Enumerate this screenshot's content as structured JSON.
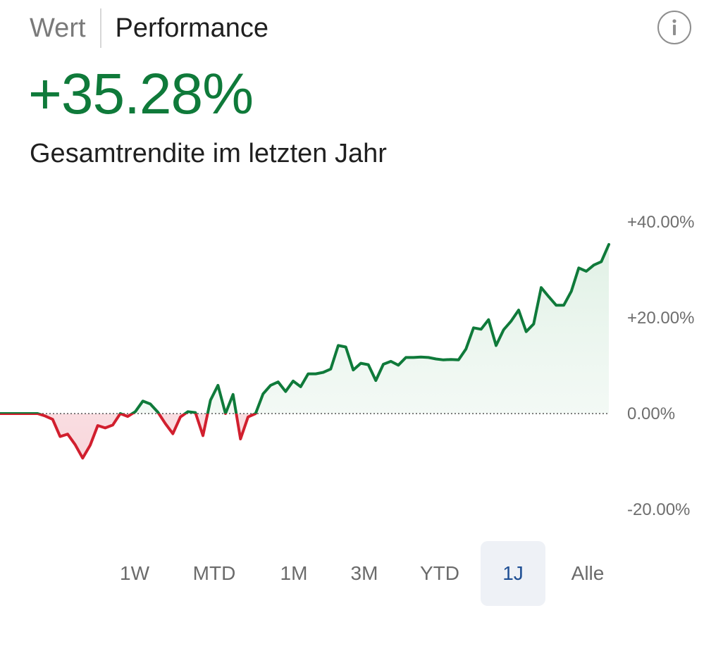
{
  "header": {
    "tabs": [
      {
        "label": "Wert",
        "active": false
      },
      {
        "label": "Performance",
        "active": true
      }
    ],
    "info_icon": "info-circle-icon"
  },
  "summary": {
    "value": "+35.28%",
    "caption": "Gesamtrendite im letzten Jahr",
    "value_color": "#0f7a3a"
  },
  "colors": {
    "positive": "#0f7a3a",
    "negative": "#d11f2e",
    "positive_fill": "#e6f4ea",
    "negative_fill": "#fbe3e6",
    "active_range_bg": "#eef1f6",
    "active_range_text": "#1f4f94"
  },
  "ranges": {
    "items": [
      "1W",
      "MTD",
      "1M",
      "3M",
      "YTD",
      "1J",
      "Alle"
    ],
    "selected": "1J"
  },
  "chart_data": {
    "type": "area",
    "ylim": [
      -20,
      40
    ],
    "y_ticks": [
      {
        "value": 40,
        "label": "+40.00%"
      },
      {
        "value": 20,
        "label": "+20.00%"
      },
      {
        "value": 0,
        "label": "0.00%"
      },
      {
        "value": -20,
        "label": "-20.00%"
      }
    ],
    "baseline": 0,
    "baseline_style": "dotted",
    "grid": false,
    "series": [
      {
        "values": [
          0,
          0,
          0,
          0,
          0,
          0,
          -0.5,
          -1.2,
          -4.8,
          -4.3,
          -6.5,
          -9.3,
          -6.6,
          -2.5,
          -3.0,
          -2.4,
          0,
          -0.6,
          0.4,
          2.6,
          2.0,
          0.3,
          -2.1,
          -4.2,
          -0.7,
          0.4,
          0.2,
          -4.6,
          2.8,
          5.9,
          0,
          4.0,
          -5.3,
          -0.7,
          0,
          4.1,
          5.9,
          6.6,
          4.6,
          6.8,
          5.6,
          8.3,
          8.3,
          8.6,
          9.3,
          14.2,
          13.9,
          9.1,
          10.5,
          10.2,
          6.9,
          10.3,
          10.9,
          10.1,
          11.7,
          11.7,
          11.8,
          11.7,
          11.4,
          11.2,
          11.3,
          11.2,
          13.5,
          17.9,
          17.6,
          19.6,
          14.2,
          17.5,
          19.3,
          21.6,
          17.1,
          18.7,
          26.3,
          24.4,
          22.6,
          22.6,
          25.5,
          30.4,
          29.7,
          31.0,
          31.7,
          35.3
        ]
      }
    ]
  }
}
